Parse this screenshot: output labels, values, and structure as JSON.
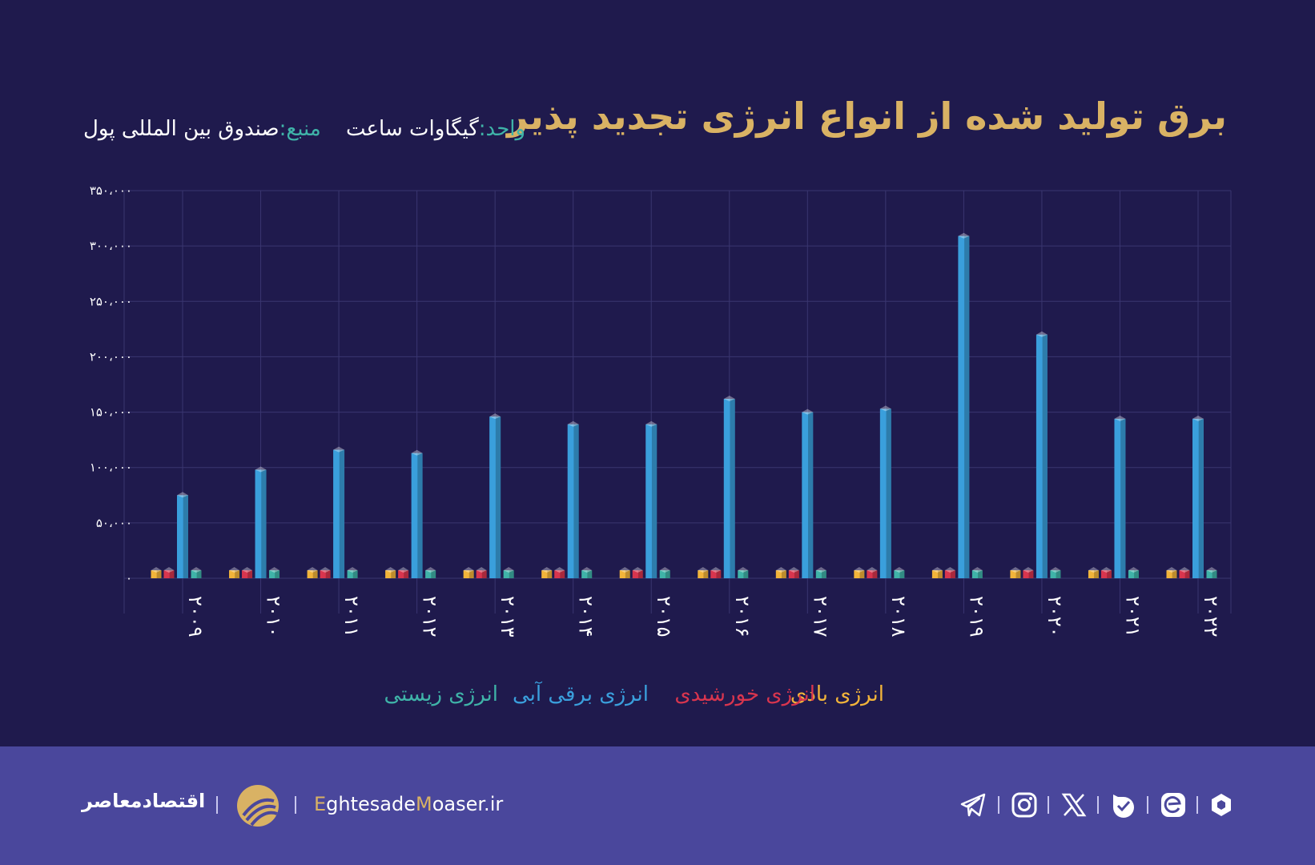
{
  "header": {
    "title": "برق تولید شده از انواع انرژی تجدید پذیر",
    "unit_label": "واحد:",
    "unit_value": "گیگاوات ساعت",
    "source_label": "منبع:",
    "source_value": "صندوق بین المللی پول"
  },
  "chart_data": {
    "type": "bar",
    "categories": [
      "۲۰۰۹",
      "۲۰۱۰",
      "۲۰۱۱",
      "۲۰۱۲",
      "۲۰۱۳",
      "۲۰۱۴",
      "۲۰۱۵",
      "۲۰۱۶",
      "۲۰۱۷",
      "۲۰۱۸",
      "۲۰۱۹",
      "۲۰۲۰",
      "۲۰۲۱",
      "۲۰۲۲"
    ],
    "y_ticks": [
      "۰",
      "۵۰،۰۰۰",
      "۱۰۰،۰۰۰",
      "۱۵۰،۰۰۰",
      "۲۰۰،۰۰۰",
      "۲۵۰،۰۰۰",
      "۳۰۰،۰۰۰",
      "۳۵۰،۰۰۰"
    ],
    "ylim": [
      0,
      350000
    ],
    "grid": true,
    "legend_position": "bottom",
    "series": [
      {
        "name": "انرژی بادی",
        "color": "#f2b43a",
        "values": [
          300,
          300,
          300,
          300,
          300,
          300,
          300,
          300,
          300,
          300,
          300,
          300,
          300,
          300
        ]
      },
      {
        "name": "انرژی خورشیدی",
        "color": "#d8354e",
        "values": [
          300,
          300,
          300,
          300,
          300,
          300,
          300,
          300,
          300,
          300,
          300,
          300,
          300,
          300
        ]
      },
      {
        "name": "انرژی برقی آبی",
        "color": "#3a9fdc",
        "values": [
          75000,
          98000,
          116000,
          113000,
          146000,
          139000,
          139000,
          162000,
          150000,
          153000,
          309000,
          220000,
          144000,
          144000
        ]
      },
      {
        "name": "انرژی زیستی",
        "color": "#3fb3a8",
        "values": [
          300,
          300,
          300,
          300,
          300,
          300,
          300,
          300,
          300,
          300,
          300,
          300,
          300,
          300
        ]
      }
    ]
  },
  "footer": {
    "brand": "اقتصادمعاصر",
    "site_e": "E",
    "site_mid": "ghtesade",
    "site_m": "M",
    "site_end": "oaser.ir",
    "icons": [
      "telegram-icon",
      "instagram-icon",
      "x-icon",
      "bale-icon",
      "eitaa-icon",
      "rubika-icon"
    ]
  }
}
